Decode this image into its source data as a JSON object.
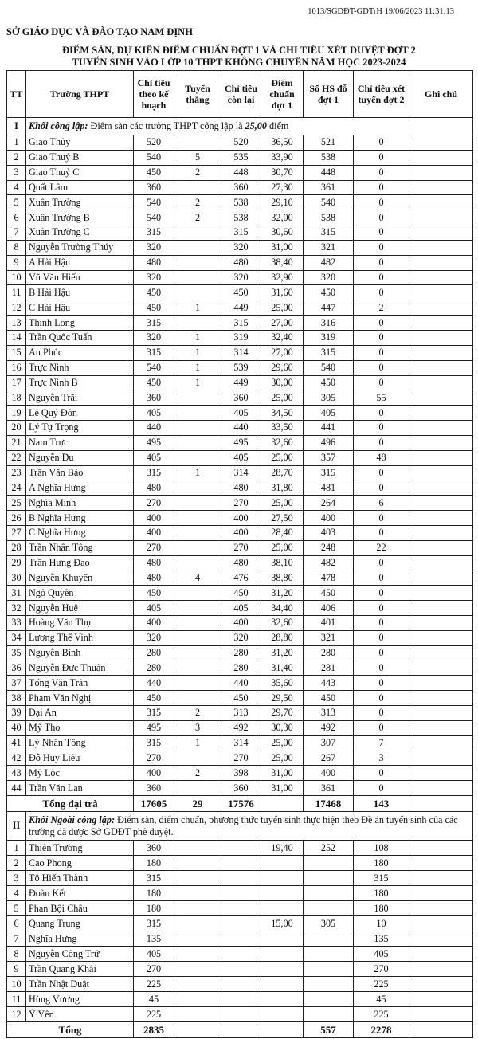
{
  "doc": {
    "ref": "1013/SGDĐT-GDTrH 19/06/2023 11:31:13",
    "org": "SỞ GIÁO DỤC VÀ ĐÀO TẠO NAM ĐỊNH",
    "title1": "ĐIỂM SÀN, DỰ KIẾN ĐIỂM CHUẨN ĐỢT 1 VÀ CHỈ TIÊU XÉT DUYỆT ĐỢT 2",
    "title2": "TUYỂN SINH VÀO LỚP 10 THPT KHÔNG CHUYÊN NĂM HỌC 2023-2024"
  },
  "headers": [
    "TT",
    "Trường THPT",
    "Chỉ tiêu theo kế hoạch",
    "Tuyển thẳng",
    "Chỉ tiêu còn lại",
    "Điểm chuẩn đợt 1",
    "Số HS đỗ đợt 1",
    "Chỉ tiêu xét tuyển đợt 2",
    "Ghi chú"
  ],
  "section1": {
    "no": "I",
    "label": "Khối công lập:",
    "text_a": " Điểm sàn các trường THPT công lập là ",
    "score": "25,00",
    "text_b": " điểm"
  },
  "rows1": [
    [
      "1",
      "Giao Thủy",
      "520",
      "",
      "520",
      "36,50",
      "521",
      "0"
    ],
    [
      "2",
      "Giao Thuỷ B",
      "540",
      "5",
      "535",
      "33,90",
      "538",
      "0"
    ],
    [
      "3",
      "Giao Thuỷ C",
      "450",
      "2",
      "448",
      "30,70",
      "448",
      "0"
    ],
    [
      "4",
      "Quất Lâm",
      "360",
      "",
      "360",
      "27,30",
      "361",
      "0"
    ],
    [
      "5",
      "Xuân Trường",
      "540",
      "2",
      "538",
      "29,10",
      "540",
      "0"
    ],
    [
      "6",
      "Xuân Trường B",
      "540",
      "2",
      "538",
      "32,00",
      "538",
      "0"
    ],
    [
      "7",
      "Xuân Trường C",
      "315",
      "",
      "315",
      "30,60",
      "315",
      "0"
    ],
    [
      "8",
      "Nguyễn Trường Thúy",
      "320",
      "",
      "320",
      "31,00",
      "321",
      "0"
    ],
    [
      "9",
      "A Hải Hậu",
      "480",
      "",
      "480",
      "38,40",
      "482",
      "0"
    ],
    [
      "10",
      "Vũ Văn Hiếu",
      "320",
      "",
      "320",
      "32,90",
      "320",
      "0"
    ],
    [
      "11",
      "B Hải Hậu",
      "450",
      "",
      "450",
      "31,60",
      "450",
      "0"
    ],
    [
      "12",
      "C Hải Hậu",
      "450",
      "1",
      "449",
      "25,00",
      "447",
      "2"
    ],
    [
      "13",
      "Thịnh Long",
      "315",
      "",
      "315",
      "27,00",
      "316",
      "0"
    ],
    [
      "14",
      "Trần Quốc Tuấn",
      "320",
      "1",
      "319",
      "32,40",
      "319",
      "0"
    ],
    [
      "15",
      "An Phúc",
      "315",
      "1",
      "314",
      "27,00",
      "315",
      "0"
    ],
    [
      "16",
      "Trực Ninh",
      "540",
      "1",
      "539",
      "29,60",
      "540",
      "0"
    ],
    [
      "17",
      "Trực Ninh B",
      "450",
      "1",
      "449",
      "30,00",
      "450",
      "0"
    ],
    [
      "18",
      "Nguyễn Trãi",
      "360",
      "",
      "360",
      "25,00",
      "305",
      "55"
    ],
    [
      "19",
      "Lê Quý Đôn",
      "405",
      "",
      "405",
      "34,50",
      "405",
      "0"
    ],
    [
      "20",
      "Lý Tự Trọng",
      "440",
      "",
      "440",
      "33,50",
      "441",
      "0"
    ],
    [
      "21",
      "Nam Trực",
      "495",
      "",
      "495",
      "32,60",
      "496",
      "0"
    ],
    [
      "22",
      "Nguyễn Du",
      "405",
      "",
      "405",
      "25,00",
      "357",
      "48"
    ],
    [
      "23",
      "Trần Văn Bảo",
      "315",
      "1",
      "314",
      "28,70",
      "315",
      "0"
    ],
    [
      "24",
      "A Nghĩa Hưng",
      "480",
      "",
      "480",
      "31,80",
      "481",
      "0"
    ],
    [
      "25",
      "Nghĩa Minh",
      "270",
      "",
      "270",
      "25,00",
      "264",
      "6"
    ],
    [
      "26",
      "B Nghĩa Hưng",
      "400",
      "",
      "400",
      "27,50",
      "400",
      "0"
    ],
    [
      "27",
      "C Nghĩa Hưng",
      "400",
      "",
      "400",
      "28,40",
      "403",
      "0"
    ],
    [
      "28",
      "Trần Nhân Tông",
      "270",
      "",
      "270",
      "25,00",
      "248",
      "22"
    ],
    [
      "29",
      "Trần Hưng Đạo",
      "480",
      "",
      "480",
      "38,10",
      "482",
      "0"
    ],
    [
      "30",
      "Nguyễn Khuyến",
      "480",
      "4",
      "476",
      "38,80",
      "478",
      "0"
    ],
    [
      "31",
      "Ngô Quyền",
      "450",
      "",
      "450",
      "31,20",
      "450",
      "0"
    ],
    [
      "32",
      "Nguyễn Huệ",
      "405",
      "",
      "405",
      "34,40",
      "406",
      "0"
    ],
    [
      "33",
      "Hoàng Văn Thụ",
      "400",
      "",
      "400",
      "32,60",
      "401",
      "0"
    ],
    [
      "34",
      "Lương Thế Vinh",
      "320",
      "",
      "320",
      "28,80",
      "321",
      "0"
    ],
    [
      "35",
      "Nguyễn Bính",
      "280",
      "",
      "280",
      "31,20",
      "280",
      "0"
    ],
    [
      "36",
      "Nguyễn Đức Thuận",
      "280",
      "",
      "280",
      "31,40",
      "281",
      "0"
    ],
    [
      "37",
      "Tống Văn Trân",
      "440",
      "",
      "440",
      "35,60",
      "443",
      "0"
    ],
    [
      "38",
      "Phạm Văn Nghị",
      "450",
      "",
      "450",
      "29,50",
      "450",
      "0"
    ],
    [
      "39",
      "Đại An",
      "315",
      "2",
      "313",
      "29,70",
      "313",
      "0"
    ],
    [
      "40",
      "Mỹ Tho",
      "495",
      "3",
      "492",
      "30,30",
      "492",
      "0"
    ],
    [
      "41",
      "Lý Nhân Tông",
      "315",
      "1",
      "314",
      "25,00",
      "307",
      "7"
    ],
    [
      "42",
      "Đỗ Huy Liêu",
      "270",
      "",
      "270",
      "25,00",
      "267",
      "3"
    ],
    [
      "43",
      "Mỹ Lộc",
      "400",
      "2",
      "398",
      "31,00",
      "400",
      "0"
    ],
    [
      "44",
      "Trần Văn Lan",
      "360",
      "",
      "360",
      "31,00",
      "361",
      "0"
    ]
  ],
  "total1": {
    "label": "Tổng đại trà",
    "values": [
      "17605",
      "29",
      "17576",
      "",
      "17468",
      "143"
    ]
  },
  "section2": {
    "no": "II",
    "label": "Khối Ngoài công lập:",
    "text": " Điểm sàn, điểm chuẩn, phương thức tuyển sinh thực hiện theo Đề án tuyển sinh của các trường đã được Sở GDĐT phê duyệt."
  },
  "rows2": [
    [
      "1",
      "Thiên Trường",
      "360",
      "",
      "",
      "19,40",
      "252",
      "108"
    ],
    [
      "2",
      "Cao Phong",
      "180",
      "",
      "",
      "",
      "",
      "180"
    ],
    [
      "3",
      "Tô Hiến Thành",
      "315",
      "",
      "",
      "",
      "",
      "315"
    ],
    [
      "4",
      "Đoàn Kết",
      "180",
      "",
      "",
      "",
      "",
      "180"
    ],
    [
      "5",
      "Phan Bội Châu",
      "180",
      "",
      "",
      "",
      "",
      "180"
    ],
    [
      "6",
      "Quang Trung",
      "315",
      "",
      "",
      "15,00",
      "305",
      "10"
    ],
    [
      "7",
      "Nghĩa Hưng",
      "135",
      "",
      "",
      "",
      "",
      "135"
    ],
    [
      "8",
      "Nguyễn Công Trứ",
      "405",
      "",
      "",
      "",
      "",
      "405"
    ],
    [
      "9",
      "Trần Quang Khải",
      "270",
      "",
      "",
      "",
      "",
      "270"
    ],
    [
      "10",
      "Trần Nhật Duật",
      "225",
      "",
      "",
      "",
      "",
      "225"
    ],
    [
      "11",
      "Hùng Vương",
      "45",
      "",
      "",
      "",
      "",
      "45"
    ],
    [
      "12",
      "Ý Yên",
      "225",
      "",
      "",
      "",
      "",
      "225"
    ]
  ],
  "total2": {
    "label": "Tổng",
    "values": [
      "2835",
      "",
      "",
      "",
      "557",
      "2278"
    ]
  }
}
